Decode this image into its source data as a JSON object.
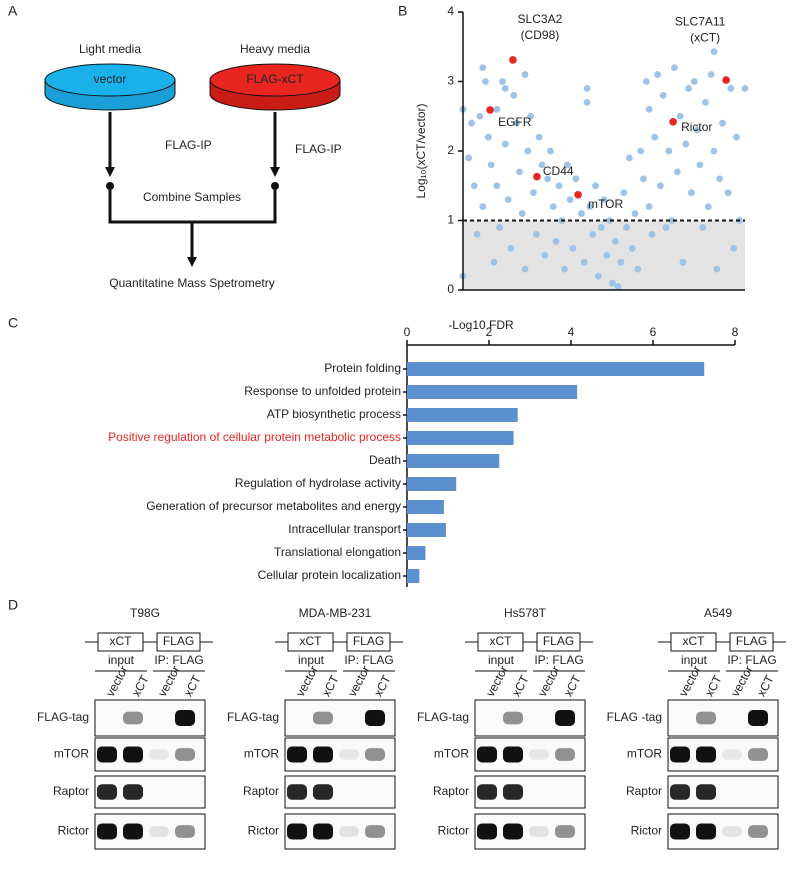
{
  "panel_labels": [
    "A",
    "B",
    "C",
    "D"
  ],
  "panel_a": {
    "light": "Light media",
    "heavy": "Heavy media",
    "vector": "vector",
    "flag_xct": "FLAG-xCT",
    "ip": "FLAG-IP",
    "combine": "Combine Samples",
    "ms": "Quantitatine Mass Spetrometry"
  },
  "chart_data": [
    {
      "type": "scatter",
      "y_label": "Log₁₀(xCT/vector)",
      "xlim": [
        0,
        100
      ],
      "ylim": [
        0,
        4
      ],
      "yticks": [
        0,
        1,
        2,
        3,
        4
      ],
      "threshold": 1,
      "points": {
        "color": "#9dc3e6",
        "x": [
          0,
          0,
          2,
          3,
          4,
          5,
          6,
          7,
          7,
          8,
          9,
          10,
          11,
          12,
          12,
          13,
          14,
          15,
          15,
          16,
          17,
          18,
          19,
          20,
          21,
          22,
          22,
          23,
          24,
          25,
          26,
          27,
          28,
          29,
          30,
          31,
          32,
          33,
          34,
          35,
          36,
          37,
          38,
          39,
          40,
          42,
          43,
          44,
          44,
          45,
          46,
          47,
          48,
          49,
          50,
          51,
          52,
          53,
          54,
          55,
          56,
          57,
          58,
          59,
          60,
          61,
          62,
          63,
          64,
          65,
          66,
          66,
          67,
          68,
          69,
          70,
          71,
          72,
          73,
          74,
          75,
          76,
          77,
          78,
          79,
          80,
          81,
          82,
          83,
          84,
          85,
          86,
          87,
          88,
          89,
          89,
          90,
          91,
          92,
          94,
          95,
          96,
          97,
          98,
          100
        ],
        "y": [
          2.6,
          0.2,
          1.9,
          2.4,
          1.5,
          0.8,
          2.5,
          3.2,
          1.2,
          3.0,
          2.2,
          1.8,
          0.4,
          2.6,
          1.5,
          0.9,
          3.0,
          2.1,
          2.9,
          1.3,
          0.6,
          2.8,
          2.4,
          1.7,
          1.1,
          3.1,
          0.3,
          2.0,
          2.5,
          1.4,
          0.8,
          2.2,
          1.8,
          0.5,
          1.6,
          2.0,
          1.2,
          0.7,
          1.5,
          1.0,
          0.3,
          1.8,
          1.3,
          0.6,
          1.6,
          1.1,
          0.4,
          2.9,
          2.7,
          1.2,
          0.8,
          1.5,
          0.2,
          0.9,
          1.3,
          0.5,
          1.0,
          0.1,
          0.7,
          0.05,
          0.4,
          1.4,
          0.9,
          1.9,
          0.6,
          1.1,
          0.3,
          2.0,
          1.6,
          3.0,
          1.2,
          2.6,
          0.8,
          2.2,
          3.1,
          1.5,
          2.8,
          0.9,
          2.0,
          1.0,
          3.2,
          1.7,
          2.5,
          0.4,
          2.1,
          2.9,
          1.4,
          3.0,
          2.3,
          1.8,
          0.9,
          2.7,
          1.2,
          3.1,
          2.0,
          3.43,
          0.3,
          1.6,
          2.4,
          1.4,
          2.9,
          0.6,
          2.2,
          1.0,
          2.9
        ]
      },
      "highlights": {
        "color": "#e8251f",
        "labels": [
          [
            "EGFR"
          ],
          [
            "SLC3A2",
            "(CD98)"
          ],
          [
            "CD44"
          ],
          [
            "mTOR"
          ],
          [
            "Rictor"
          ],
          [
            "SLC7A11",
            "(xCT)"
          ]
        ],
        "x": [
          9.6,
          17.7,
          26.2,
          40.8,
          74.5,
          93.3
        ],
        "y": [
          2.59,
          3.31,
          1.63,
          1.37,
          2.42,
          3.02
        ]
      }
    },
    {
      "type": "hbar",
      "x_label": "-Log10 FDR",
      "categories": [
        "Protein folding",
        "Response to unfolded protein",
        "ATP biosynthetic process",
        "Positive regulation of cellular protein metabolic process",
        "Death",
        "Regulation of hydrolase activity",
        "Generation of precursor metabolites and energy",
        "Intracellular transport",
        "Translational elongation",
        "Cellular protein localization"
      ],
      "values": [
        7.25,
        4.15,
        2.7,
        2.6,
        2.25,
        1.2,
        0.9,
        0.95,
        0.45,
        0.3
      ],
      "color": "#5b8fd0",
      "highlight": 3,
      "highlight_color": "#e8251f",
      "xlim": [
        0,
        8
      ],
      "xticks": [
        0,
        2,
        4,
        6,
        8
      ]
    }
  ],
  "panel_d": {
    "header": {
      "constructs": [
        "xCT",
        "FLAG"
      ],
      "groups": [
        "input",
        "IP: FLAG"
      ],
      "lanes": [
        "vector",
        "xCT",
        "vector",
        "xCT"
      ]
    },
    "blots": [
      {
        "cell_line": "T98G",
        "rows": [
          "FLAG-tag",
          "mTOR",
          "Raptor",
          "Rictor"
        ]
      },
      {
        "cell_line": "MDA-MB-231",
        "rows": [
          "FLAG-tag",
          "mTOR",
          "Raptor",
          "Rictor"
        ]
      },
      {
        "cell_line": "Hs578T",
        "rows": [
          "FLAG-tag",
          "mTOR",
          "Raptor",
          "Rictor"
        ]
      },
      {
        "cell_line": "A549",
        "rows": [
          "FLAG -tag",
          "mTOR",
          "Raptor",
          "Rictor"
        ]
      }
    ]
  }
}
